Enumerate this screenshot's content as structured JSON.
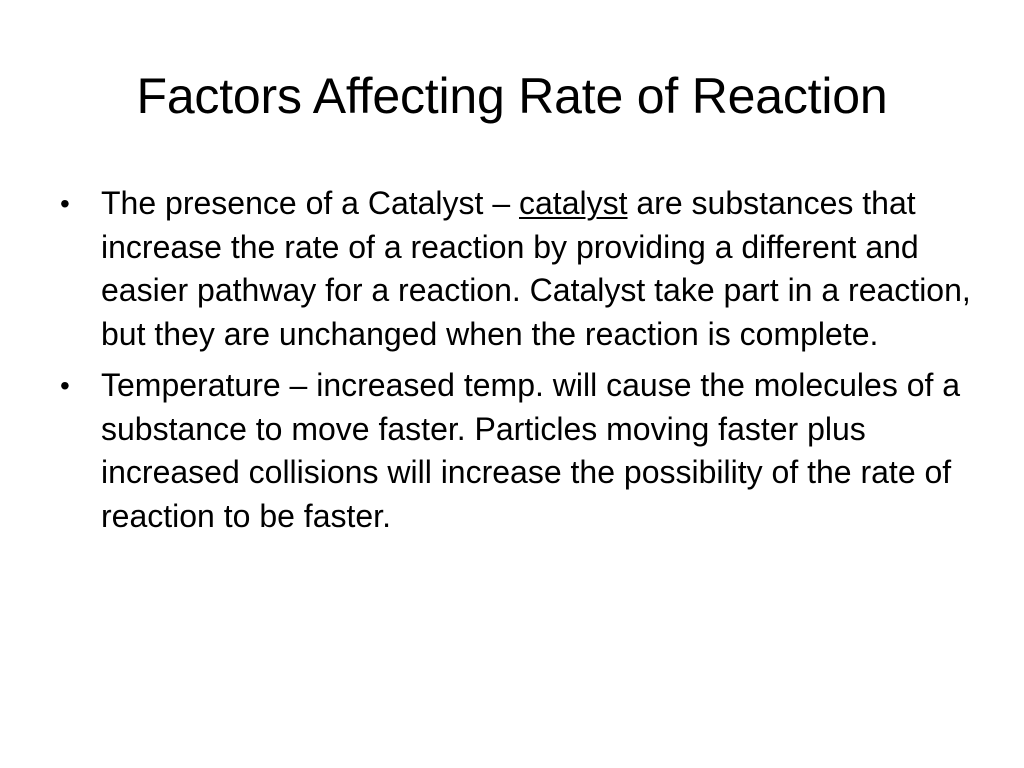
{
  "slide": {
    "title": "Factors Affecting Rate of Reaction",
    "bullets": [
      {
        "marker": "•",
        "text_before": "The presence of a Catalyst – ",
        "underlined": "catalyst",
        "text_after": " are substances that increase the rate of a reaction by providing a different and easier pathway for a reaction.  Catalyst take part in a reaction, but they are unchanged when the reaction is complete."
      },
      {
        "marker": "•",
        "text": "Temperature – increased temp. will cause the molecules of a substance to move faster.  Particles moving faster plus increased collisions will increase the possibility of the rate of reaction to be faster."
      }
    ]
  }
}
